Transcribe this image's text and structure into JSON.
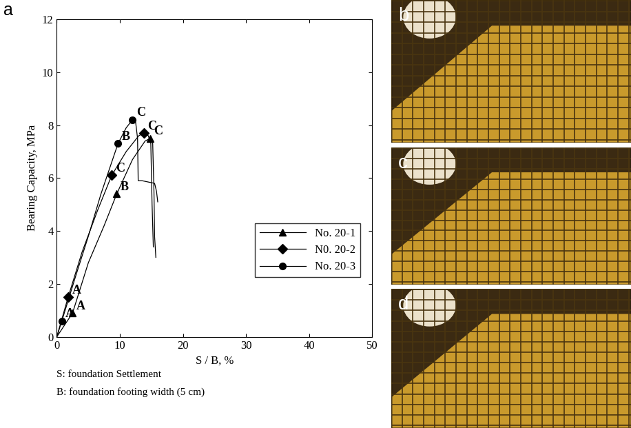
{
  "panel_label": "a",
  "chart_data": {
    "type": "line",
    "x_label": "S / B, %",
    "y_label": "Bearing Capacity, MPa",
    "xlim": [
      0,
      50
    ],
    "xticks": [
      0,
      10,
      20,
      30,
      40,
      50
    ],
    "ylim": [
      0,
      12
    ],
    "yticks": [
      0,
      2,
      4,
      6,
      8,
      10,
      12
    ],
    "grid": false,
    "legend": "lower right",
    "series": [
      {
        "name": "No. 20-1",
        "color": "#000000",
        "marker": "triangle",
        "line_style": "solid",
        "x": [
          0,
          2.5,
          5,
          7.5,
          9.5,
          12,
          14,
          14.8,
          15.2,
          15.4,
          15.5,
          15.7
        ],
        "values": [
          0,
          0.9,
          2.8,
          4.2,
          5.4,
          6.7,
          7.4,
          7.5,
          7.3,
          5.5,
          3.8,
          3.0
        ],
        "markers": {
          "x": [
            2.5,
            9.5,
            14.8
          ],
          "values": [
            0.9,
            5.4,
            7.5
          ],
          "labels": [
            "A",
            "B",
            "C"
          ]
        }
      },
      {
        "name": "N0. 20-2",
        "color": "#000000",
        "marker": "diamond",
        "line_style": "solid",
        "x": [
          0,
          1.8,
          4,
          6.5,
          8.7,
          11,
          13,
          13.8,
          14.5,
          14.9,
          15.1,
          15.3
        ],
        "values": [
          0,
          1.5,
          3.2,
          4.8,
          6.1,
          7.0,
          7.6,
          7.7,
          7.6,
          7.3,
          5.0,
          3.4
        ],
        "markers": {
          "x": [
            1.8,
            8.7,
            13.8
          ],
          "values": [
            1.5,
            6.1,
            7.7
          ],
          "labels": [
            "A",
            "C",
            "C"
          ]
        }
      },
      {
        "name": "No. 20-3",
        "color": "#000000",
        "marker": "circle",
        "line_style": "solid",
        "x": [
          0,
          0.8,
          3,
          5,
          7,
          9.7,
          11,
          12,
          12.5,
          12.8,
          12.9,
          13.5,
          14.5,
          15.5,
          15.8,
          16
        ],
        "values": [
          0,
          0.6,
          2.3,
          3.8,
          5.4,
          7.3,
          7.9,
          8.2,
          8.1,
          7.5,
          5.9,
          5.9,
          5.85,
          5.8,
          5.5,
          5.1
        ],
        "markers": {
          "x": [
            0.8,
            9.7,
            12
          ],
          "values": [
            0.6,
            7.3,
            8.2
          ],
          "labels": [
            "A",
            "B",
            "C"
          ]
        }
      }
    ]
  },
  "footnotes": [
    "S: foundation Settlement",
    "B: foundation footing width (5 cm)"
  ],
  "photo_panels": [
    {
      "label": "b"
    },
    {
      "label": "c"
    },
    {
      "label": "d"
    }
  ]
}
